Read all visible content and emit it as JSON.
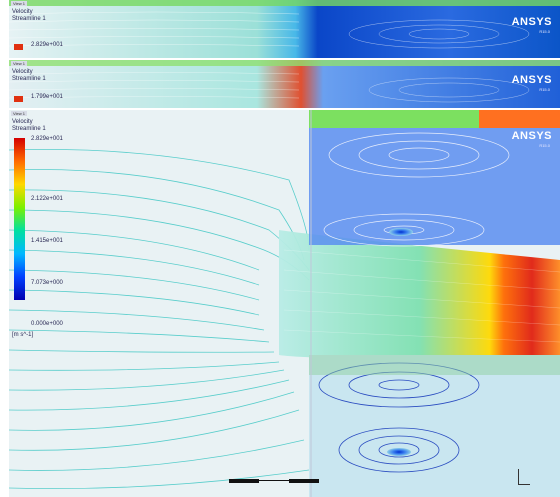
{
  "panels": [
    {
      "view_label": "View 1",
      "legend_title": "Velocity",
      "legend_subtitle": "Streamline 1",
      "legend_value": "2.829e+001",
      "brand": "ANSYS",
      "brand_version": "R15.0"
    },
    {
      "view_label": "View 1",
      "legend_title": "Velocity",
      "legend_subtitle": "Streamline 1",
      "legend_value": "1.799e+001",
      "brand": "ANSYS",
      "brand_version": "R15.0"
    },
    {
      "view_label": "View 1",
      "legend_title": "Velocity",
      "legend_subtitle": "Streamline 1",
      "brand": "ANSYS",
      "brand_version": "R15.0",
      "colorbar_ticks": [
        "2.829e+001",
        "2.122e+001",
        "1.415e+001",
        "7.073e+000",
        "0.000e+000"
      ],
      "unit": "[m s^-1]",
      "colormap": [
        "#d40000",
        "#ff6a00",
        "#ffd800",
        "#7cf000",
        "#00e0a0",
        "#00b8ff",
        "#0040ff",
        "#0000b0"
      ]
    }
  ]
}
